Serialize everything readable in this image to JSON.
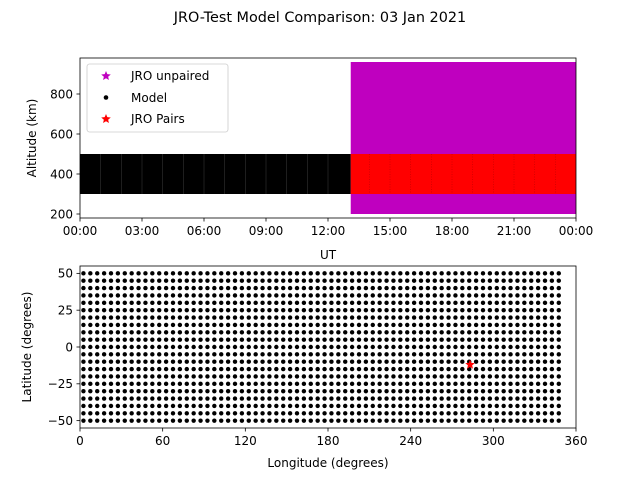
{
  "title": "JRO-Test Model Comparison: 03 Jan 2021",
  "colors": {
    "unpaired": "#bf00bf",
    "model": "#000000",
    "pairs": "#ff0000"
  },
  "chart_data": [
    {
      "type": "scatter",
      "xlabel": "UT",
      "ylabel": "Altitude (km)",
      "xlim": [
        "00:00",
        "24:00"
      ],
      "ylim": [
        180,
        980
      ],
      "x_ticks": [
        0,
        3,
        6,
        9,
        12,
        15,
        18,
        21,
        24
      ],
      "x_tick_labels": [
        "00:00",
        "03:00",
        "06:00",
        "09:00",
        "12:00",
        "15:00",
        "18:00",
        "21:00",
        "00:00"
      ],
      "y_ticks": [
        200,
        400,
        600,
        800
      ],
      "y_tick_labels": [
        "200",
        "400",
        "600",
        "800"
      ],
      "legend_position": "top-left",
      "legend": [
        {
          "label": "JRO unpaired",
          "marker": "star",
          "color_key": "unpaired"
        },
        {
          "label": "Model",
          "marker": "dot",
          "color_key": "model"
        },
        {
          "label": "JRO Pairs",
          "marker": "star",
          "color_key": "pairs"
        }
      ],
      "series": [
        {
          "name": "JRO unpaired",
          "x_range_ut_hours": [
            13.1,
            24.0
          ],
          "y_range_km": [
            200,
            960
          ]
        },
        {
          "name": "Model",
          "x_range_ut_hours": [
            0.0,
            13.1
          ],
          "y_range_km": [
            300,
            500
          ]
        },
        {
          "name": "JRO Pairs",
          "x_range_ut_hours": [
            13.1,
            24.0
          ],
          "y_range_km": [
            300,
            500
          ]
        }
      ]
    },
    {
      "type": "scatter",
      "xlabel": "Longitude (degrees)",
      "ylabel": "Latitude (degrees)",
      "xlim": [
        0,
        360
      ],
      "ylim": [
        -55,
        55
      ],
      "x_ticks": [
        0,
        60,
        120,
        180,
        240,
        300,
        360
      ],
      "x_tick_labels": [
        "0",
        "60",
        "120",
        "180",
        "240",
        "300",
        "360"
      ],
      "y_ticks": [
        -50,
        -25,
        0,
        25,
        50
      ],
      "y_tick_labels": [
        "−50",
        "−25",
        "0",
        "25",
        "50"
      ],
      "series": [
        {
          "name": "Model",
          "lon_start": 2.5,
          "lon_step": 5,
          "lon_count": 70,
          "lat_start": -50,
          "lat_step": 5,
          "lat_count": 21
        },
        {
          "name": "JRO Pairs",
          "points": [
            [
              283.1,
              -12
            ]
          ]
        }
      ]
    }
  ]
}
